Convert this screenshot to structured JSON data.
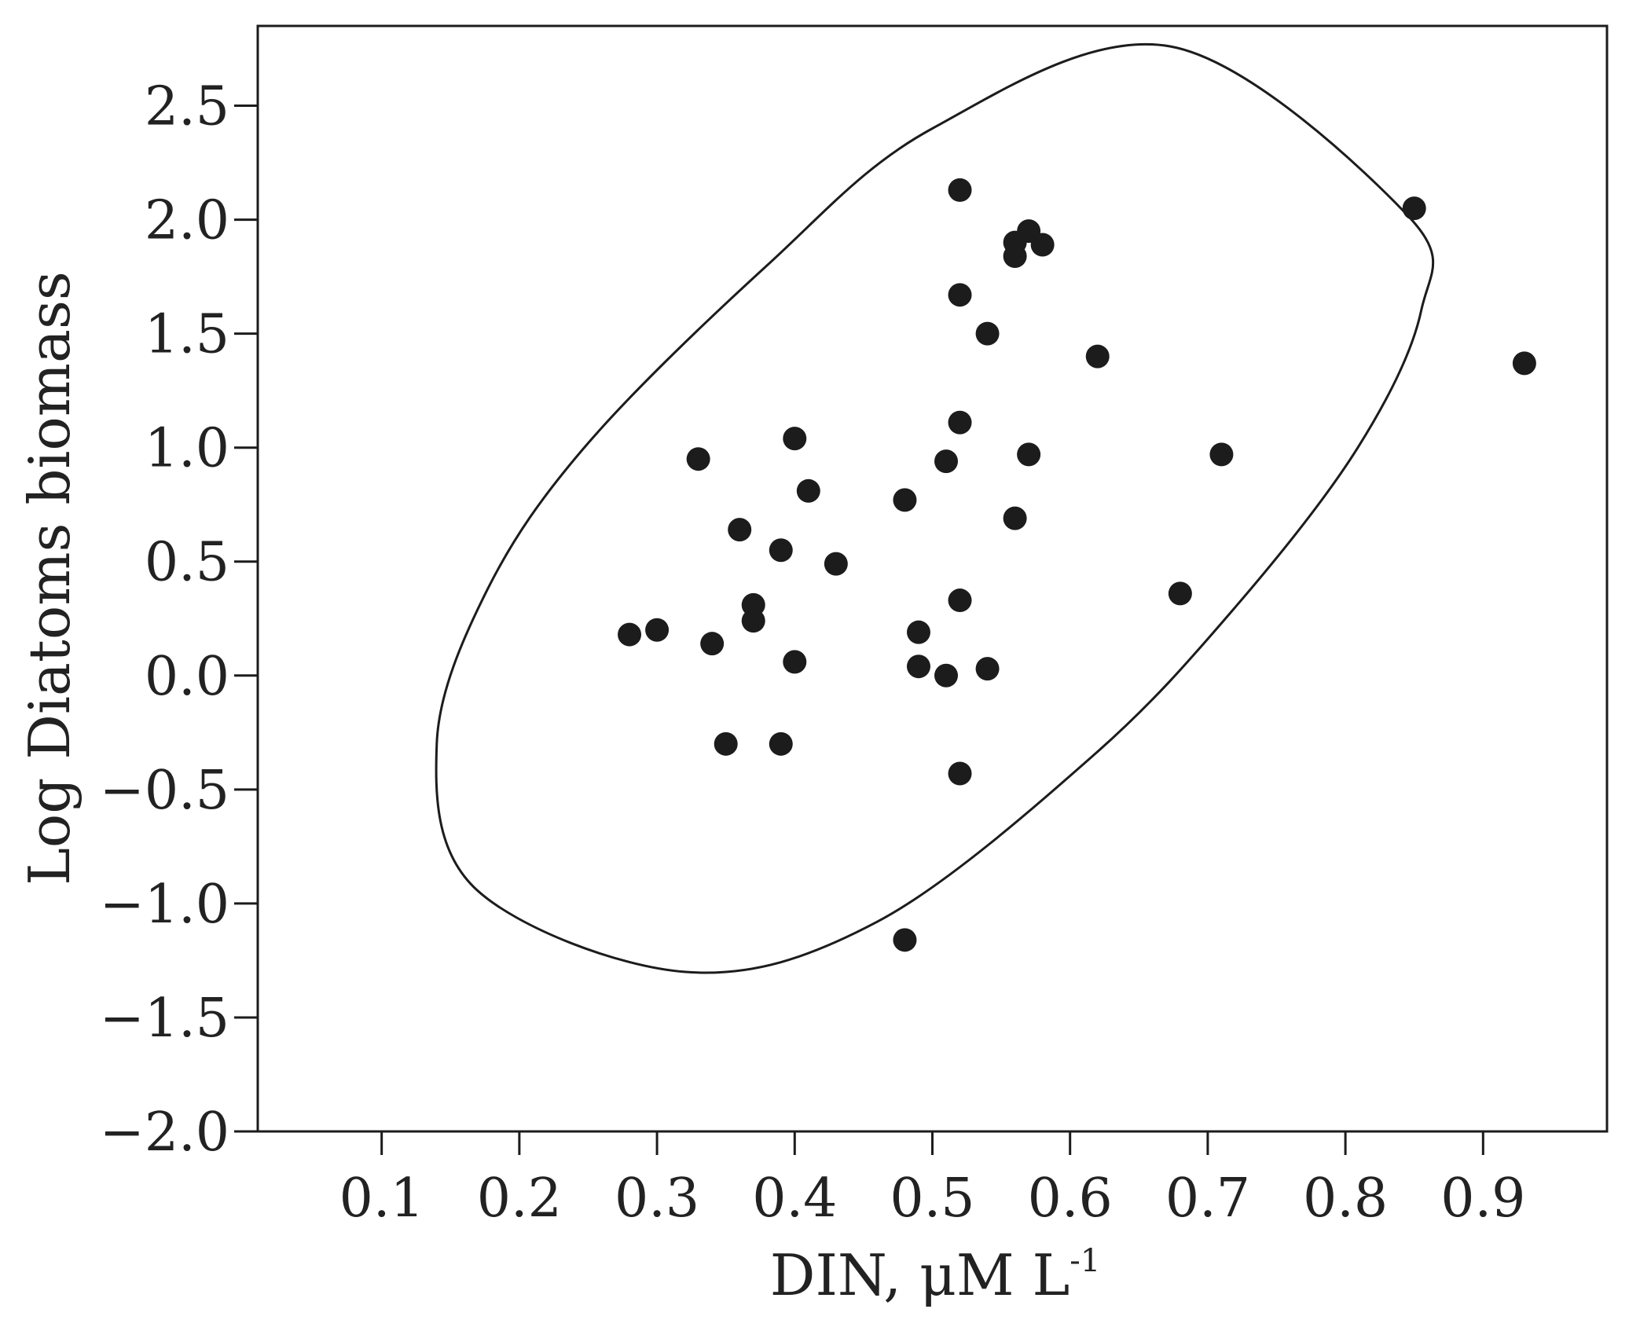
{
  "chart_data": {
    "type": "scatter",
    "title": "",
    "xlabel": "DIN, μM L",
    "xlabel_superscript": "-1",
    "ylabel": "Log Diatoms biomass",
    "xlim": [
      0.01,
      0.99
    ],
    "ylim": [
      -2.0,
      2.85
    ],
    "x_ticks": [
      0.1,
      0.2,
      0.3,
      0.4,
      0.5,
      0.6,
      0.7,
      0.8,
      0.9
    ],
    "x_tick_labels": [
      "0.1",
      "0.2",
      "0.3",
      "0.4",
      "0.5",
      "0.6",
      "0.7",
      "0.8",
      "0.9"
    ],
    "y_ticks": [
      2.5,
      2.0,
      1.5,
      1.0,
      0.5,
      0.0,
      -0.5,
      -1.0,
      -1.5,
      -2.0
    ],
    "y_tick_labels": [
      "2.5",
      "2.0",
      "1.5",
      "1.0",
      "0.5",
      "0.0",
      "−0.5",
      "−1.0",
      "−1.5",
      "−2.0"
    ],
    "grid": false,
    "legend": "none",
    "marker_color": "#1c1c1c",
    "ellipse_color": "#1c1c1c",
    "series": [
      {
        "points": [
          {
            "x": 0.28,
            "y": 0.18
          },
          {
            "x": 0.3,
            "y": 0.2
          },
          {
            "x": 0.33,
            "y": 0.95
          },
          {
            "x": 0.34,
            "y": 0.14
          },
          {
            "x": 0.35,
            "y": -0.3
          },
          {
            "x": 0.36,
            "y": 0.64
          },
          {
            "x": 0.37,
            "y": 0.31
          },
          {
            "x": 0.37,
            "y": 0.24
          },
          {
            "x": 0.39,
            "y": 0.55
          },
          {
            "x": 0.39,
            "y": -0.3
          },
          {
            "x": 0.4,
            "y": 1.04
          },
          {
            "x": 0.4,
            "y": 0.06
          },
          {
            "x": 0.41,
            "y": 0.81
          },
          {
            "x": 0.43,
            "y": 0.49
          },
          {
            "x": 0.48,
            "y": 0.77
          },
          {
            "x": 0.48,
            "y": -1.16
          },
          {
            "x": 0.49,
            "y": 0.19
          },
          {
            "x": 0.49,
            "y": 0.04
          },
          {
            "x": 0.51,
            "y": 0.94
          },
          {
            "x": 0.51,
            "y": 0.0
          },
          {
            "x": 0.52,
            "y": 2.13
          },
          {
            "x": 0.52,
            "y": 1.67
          },
          {
            "x": 0.52,
            "y": 1.11
          },
          {
            "x": 0.52,
            "y": 0.33
          },
          {
            "x": 0.52,
            "y": -0.43
          },
          {
            "x": 0.54,
            "y": 1.5
          },
          {
            "x": 0.54,
            "y": 0.03
          },
          {
            "x": 0.56,
            "y": 1.9
          },
          {
            "x": 0.56,
            "y": 1.84
          },
          {
            "x": 0.56,
            "y": 0.69
          },
          {
            "x": 0.57,
            "y": 1.95
          },
          {
            "x": 0.57,
            "y": 0.97
          },
          {
            "x": 0.58,
            "y": 1.89
          },
          {
            "x": 0.62,
            "y": 1.4
          },
          {
            "x": 0.68,
            "y": 0.36
          },
          {
            "x": 0.71,
            "y": 0.97
          },
          {
            "x": 0.85,
            "y": 2.05
          },
          {
            "x": 0.93,
            "y": 1.37
          }
        ]
      }
    ],
    "annotations": [
      {
        "type": "confidence-ellipse",
        "points": [
          [
            0.673,
            2.76
          ],
          [
            0.845,
            2.02
          ],
          [
            0.855,
            1.6
          ],
          [
            0.809,
            1.0
          ],
          [
            0.72,
            0.3
          ],
          [
            0.617,
            -0.35
          ],
          [
            0.46,
            -1.08
          ],
          [
            0.32,
            -1.3
          ],
          [
            0.169,
            -0.94
          ],
          [
            0.14,
            -0.3
          ],
          [
            0.177,
            0.38
          ],
          [
            0.25,
            1.02
          ],
          [
            0.38,
            1.8
          ],
          [
            0.5,
            2.4
          ],
          [
            0.673,
            2.76
          ]
        ]
      }
    ]
  }
}
